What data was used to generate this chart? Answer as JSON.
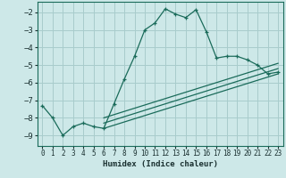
{
  "xlabel": "Humidex (Indice chaleur)",
  "bg_color": "#cde8e8",
  "grid_color": "#a8cccc",
  "line_color": "#1a6b5a",
  "xlim": [
    -0.5,
    23.5
  ],
  "ylim": [
    -9.6,
    -1.4
  ],
  "yticks": [
    -2,
    -3,
    -4,
    -5,
    -6,
    -7,
    -8,
    -9
  ],
  "xticks": [
    0,
    1,
    2,
    3,
    4,
    5,
    6,
    7,
    8,
    9,
    10,
    11,
    12,
    13,
    14,
    15,
    16,
    17,
    18,
    19,
    20,
    21,
    22,
    23
  ],
  "series1_x": [
    0,
    1,
    2,
    3,
    4,
    5,
    6,
    7,
    8,
    9,
    10,
    11,
    12,
    13,
    14,
    15,
    16,
    17,
    18,
    19,
    20,
    21,
    22,
    23
  ],
  "series1_y": [
    -7.3,
    -8.0,
    -9.0,
    -8.5,
    -8.3,
    -8.5,
    -8.6,
    -7.2,
    -5.8,
    -4.5,
    -3.0,
    -2.6,
    -1.8,
    -2.1,
    -2.3,
    -1.85,
    -3.1,
    -4.6,
    -4.5,
    -4.5,
    -4.7,
    -5.0,
    -5.5,
    -5.4
  ],
  "series2_x": [
    6,
    23
  ],
  "series2_y": [
    -8.6,
    -5.5
  ],
  "series3_x": [
    6,
    23
  ],
  "series3_y": [
    -8.3,
    -5.2
  ],
  "series4_x": [
    6,
    23
  ],
  "series4_y": [
    -8.0,
    -4.9
  ]
}
